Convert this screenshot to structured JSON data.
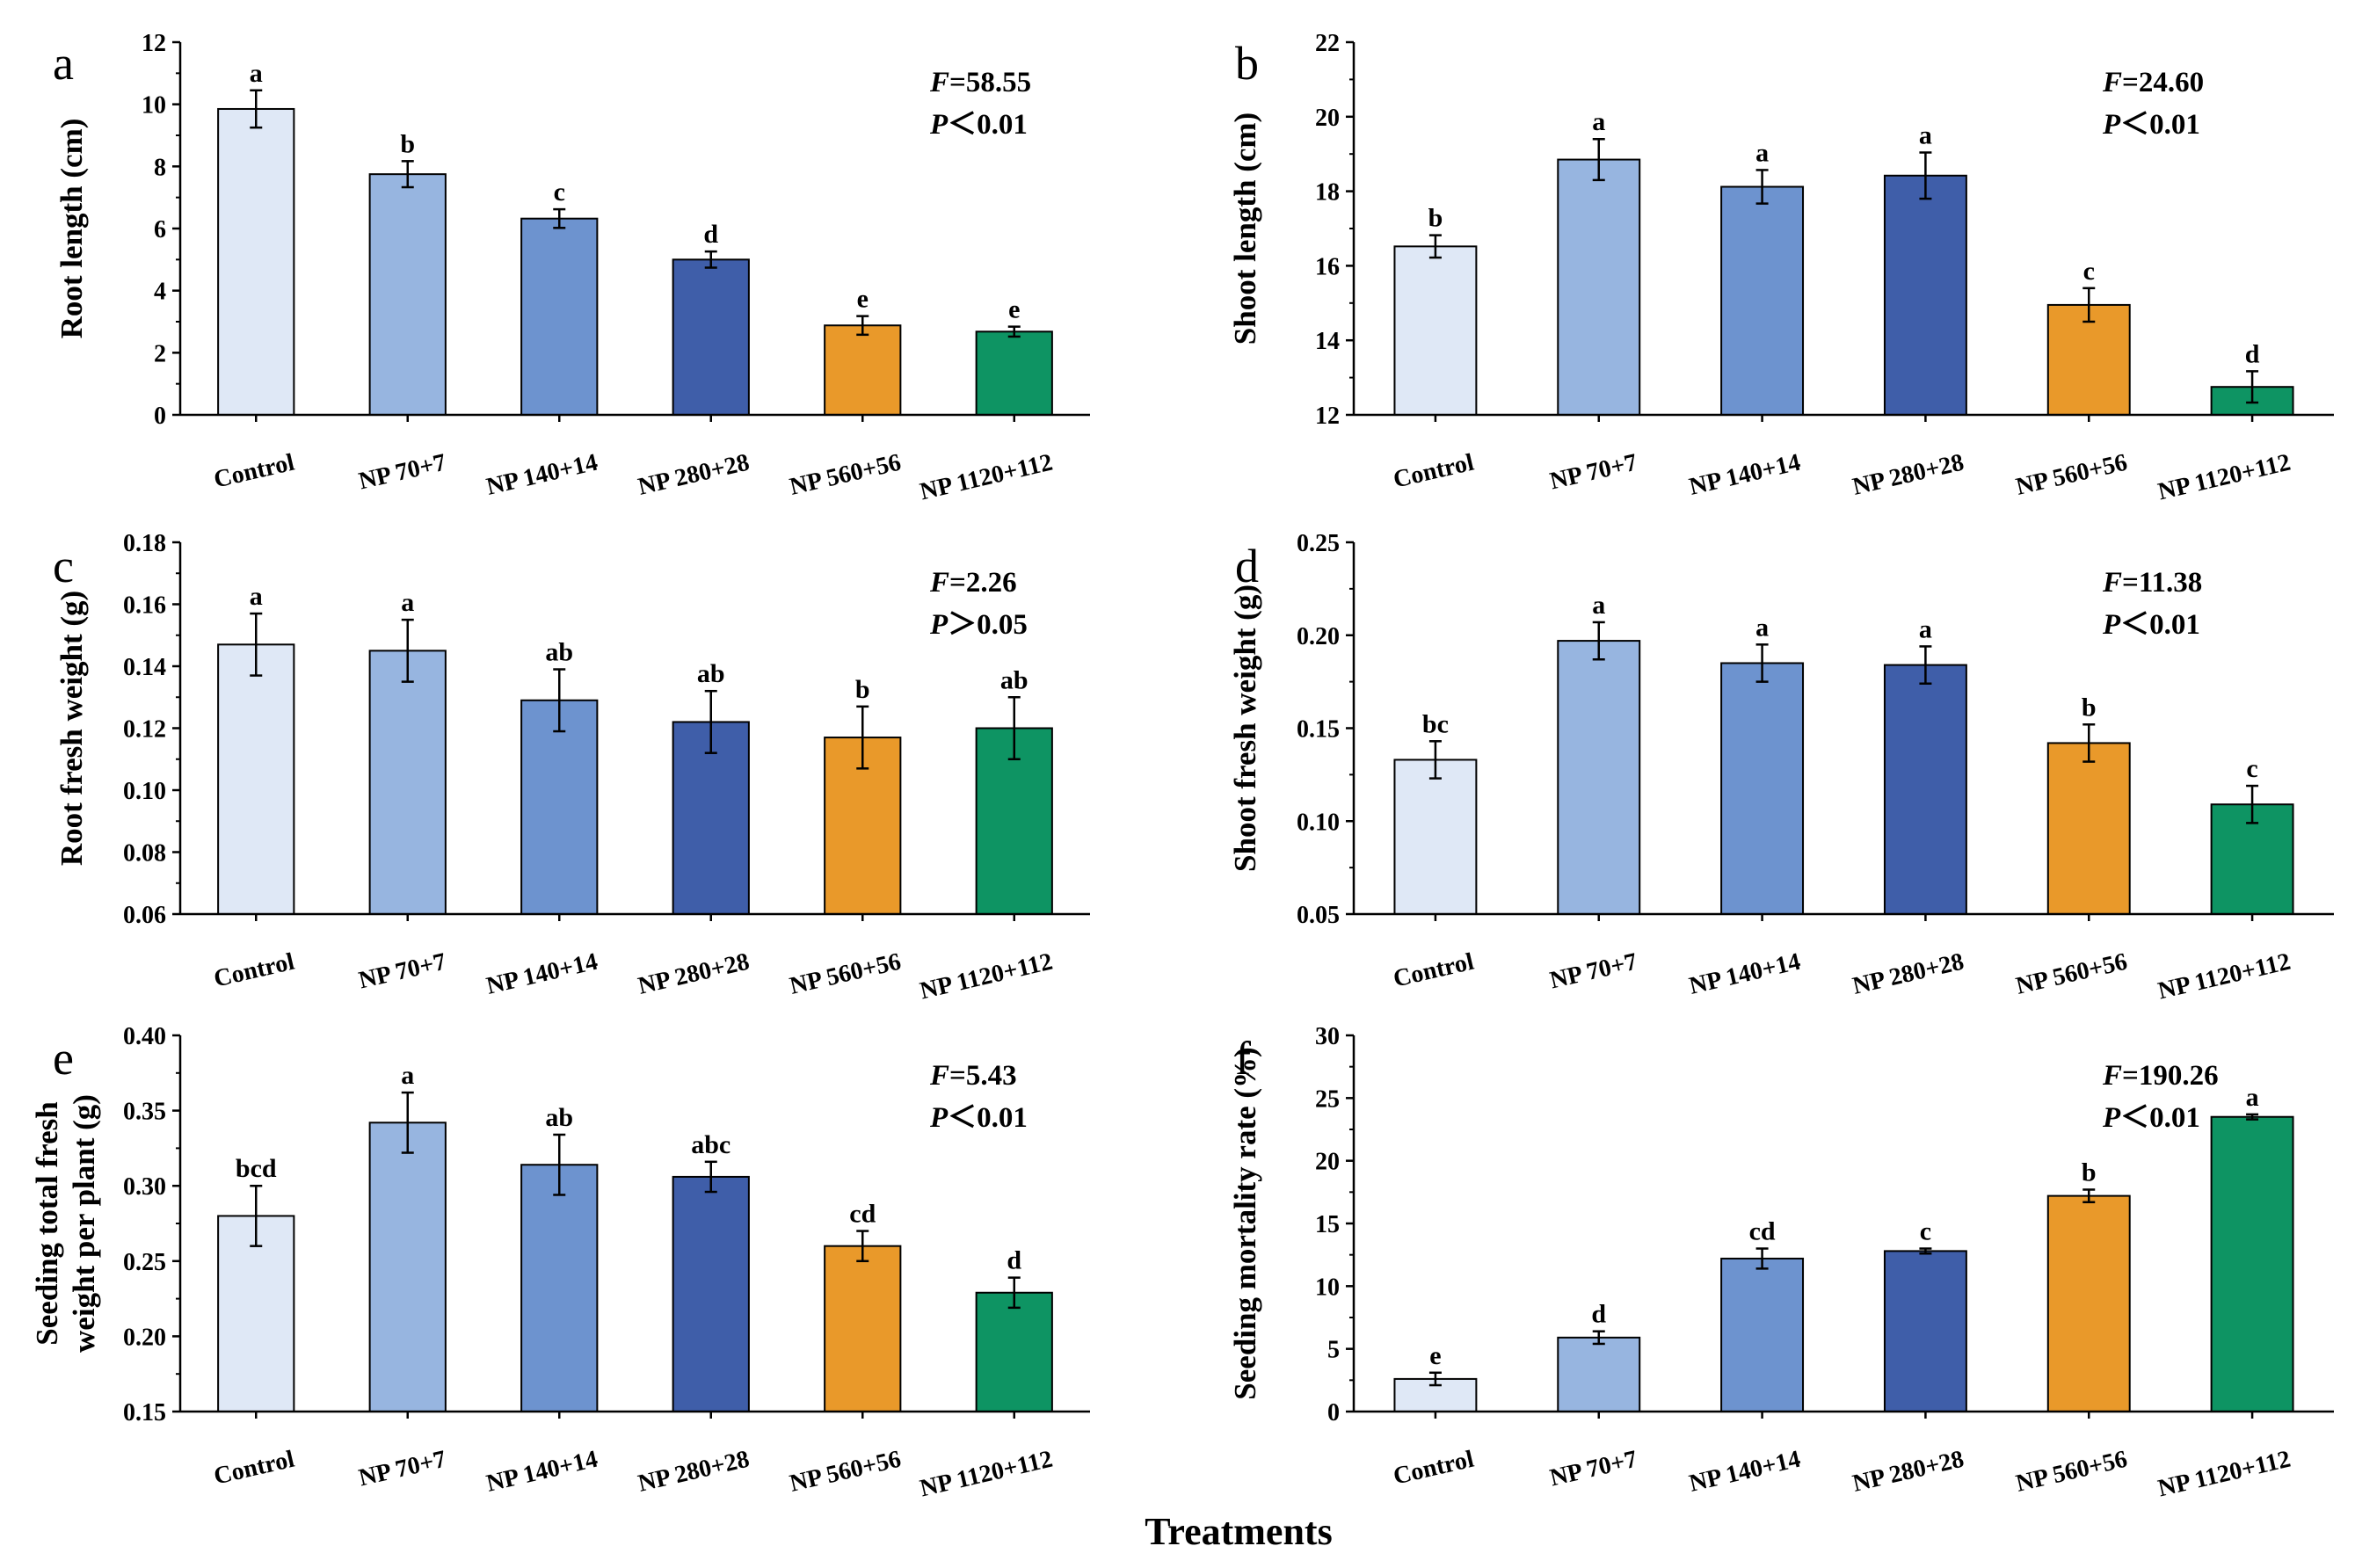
{
  "figure": {
    "x_axis_title": "Treatments",
    "bar_colors": [
      "#dfe8f6",
      "#97b5e0",
      "#6d93cf",
      "#3f5ea9",
      "#e9992a",
      "#0e9463"
    ]
  },
  "chart_data": [
    {
      "type": "bar",
      "panel_label": "a",
      "categories": [
        "Control",
        "NP 70+7",
        "NP 140+14",
        "NP 280+28",
        "NP 560+56",
        "NP 1120+112"
      ],
      "values": [
        9.85,
        7.75,
        6.32,
        5.0,
        2.88,
        2.68
      ],
      "errors": [
        0.6,
        0.42,
        0.3,
        0.26,
        0.3,
        0.16
      ],
      "letters": [
        "a",
        "b",
        "c",
        "d",
        "e",
        "e"
      ],
      "ylabel": "Root length (cm)",
      "ylim": [
        0,
        12
      ],
      "yticks": [
        0,
        2,
        4,
        6,
        8,
        10,
        12
      ],
      "tick_labels": [
        "0",
        "2",
        "4",
        "6",
        "8",
        "10",
        "12"
      ],
      "f_label": "F",
      "f_value": "=58.55",
      "p_label": "P",
      "p_value": "＜0.01"
    },
    {
      "type": "bar",
      "panel_label": "b",
      "categories": [
        "Control",
        "NP 70+7",
        "NP 140+14",
        "NP 280+28",
        "NP 560+56",
        "NP 1120+112"
      ],
      "values": [
        16.52,
        18.85,
        18.12,
        18.42,
        14.95,
        12.75
      ],
      "errors": [
        0.3,
        0.55,
        0.45,
        0.62,
        0.45,
        0.42
      ],
      "letters": [
        "b",
        "a",
        "a",
        "a",
        "c",
        "d"
      ],
      "ylabel": "Shoot length (cm)",
      "ylim": [
        12,
        22
      ],
      "yticks": [
        12,
        14,
        16,
        18,
        20,
        22
      ],
      "tick_labels": [
        "12",
        "14",
        "16",
        "18",
        "20",
        "22"
      ],
      "f_label": "F",
      "f_value": "=24.60",
      "p_label": "P",
      "p_value": "＜0.01"
    },
    {
      "type": "bar",
      "panel_label": "c",
      "categories": [
        "Control",
        "NP 70+7",
        "NP 140+14",
        "NP 280+28",
        "NP 560+56",
        "NP 1120+112"
      ],
      "values": [
        0.147,
        0.145,
        0.129,
        0.122,
        0.117,
        0.12
      ],
      "errors": [
        0.01,
        0.01,
        0.01,
        0.01,
        0.01,
        0.01
      ],
      "letters": [
        "a",
        "a",
        "ab",
        "ab",
        "b",
        "ab"
      ],
      "ylabel": "Root fresh weight (g)",
      "ylim": [
        0.06,
        0.18
      ],
      "yticks": [
        0.06,
        0.08,
        0.1,
        0.12,
        0.14,
        0.16,
        0.18
      ],
      "tick_labels": [
        "0.06",
        "0.08",
        "0.10",
        "0.12",
        "0.14",
        "0.16",
        "0.18"
      ],
      "f_label": "F",
      "f_value": "=2.26",
      "p_label": "P",
      "p_value": "＞0.05"
    },
    {
      "type": "bar",
      "panel_label": "d",
      "categories": [
        "Control",
        "NP 70+7",
        "NP 140+14",
        "NP 280+28",
        "NP 560+56",
        "NP 1120+112"
      ],
      "values": [
        0.133,
        0.197,
        0.185,
        0.184,
        0.142,
        0.109
      ],
      "errors": [
        0.01,
        0.01,
        0.01,
        0.01,
        0.01,
        0.01
      ],
      "letters": [
        "bc",
        "a",
        "a",
        "a",
        "b",
        "c"
      ],
      "ylabel": "Shoot fresh weight (g)",
      "ylim": [
        0.05,
        0.25
      ],
      "yticks": [
        0.05,
        0.1,
        0.15,
        0.2,
        0.25
      ],
      "tick_labels": [
        "0.05",
        "0.10",
        "0.15",
        "0.20",
        "0.25"
      ],
      "f_label": "F",
      "f_value": "=11.38",
      "p_label": "P",
      "p_value": "＜0.01"
    },
    {
      "type": "bar",
      "panel_label": "e",
      "categories": [
        "Control",
        "NP 70+7",
        "NP 140+14",
        "NP 280+28",
        "NP 560+56",
        "NP 1120+112"
      ],
      "values": [
        0.28,
        0.342,
        0.314,
        0.306,
        0.26,
        0.229
      ],
      "errors": [
        0.02,
        0.02,
        0.02,
        0.01,
        0.01,
        0.01
      ],
      "letters": [
        "bcd",
        "a",
        "ab",
        "abc",
        "cd",
        "d"
      ],
      "ylabel": "Seeding total fresh weight per plant (g)",
      "ylabel_lines": [
        "Seeding total fresh",
        "weight per plant (g)"
      ],
      "ylim": [
        0.15,
        0.4
      ],
      "yticks": [
        0.15,
        0.2,
        0.25,
        0.3,
        0.35,
        0.4
      ],
      "tick_labels": [
        "0.15",
        "0.20",
        "0.25",
        "0.30",
        "0.35",
        "0.40"
      ],
      "f_label": "F",
      "f_value": "=5.43",
      "p_label": "P",
      "p_value": "＜0.01"
    },
    {
      "type": "bar",
      "panel_label": "f",
      "categories": [
        "Control",
        "NP 70+7",
        "NP 140+14",
        "NP 280+28",
        "NP 560+56",
        "NP 1120+112"
      ],
      "values": [
        2.6,
        5.9,
        12.2,
        12.8,
        17.2,
        23.5
      ],
      "errors": [
        0.5,
        0.5,
        0.8,
        0.2,
        0.5,
        0.2
      ],
      "letters": [
        "e",
        "d",
        "cd",
        "c",
        "b",
        "a"
      ],
      "ylabel": "Seeding mortality rate (%)",
      "ylim": [
        0,
        30
      ],
      "yticks": [
        0,
        5,
        10,
        15,
        20,
        25,
        30
      ],
      "tick_labels": [
        "0",
        "5",
        "10",
        "15",
        "20",
        "25",
        "30"
      ],
      "f_label": "F",
      "f_value": "=190.26",
      "p_label": "P",
      "p_value": "＜0.01"
    }
  ]
}
